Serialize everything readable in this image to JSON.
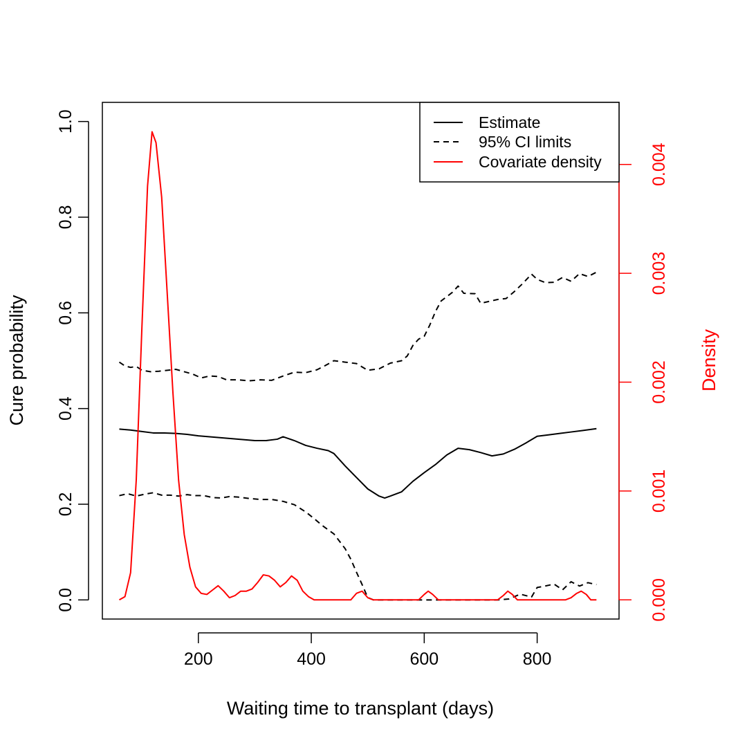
{
  "chart_data": {
    "type": "line",
    "xlabel": "Waiting time to transplant (days)",
    "ylabel": "Cure probability",
    "y2label": "Density",
    "xlim": [
      30,
      945
    ],
    "ylim": [
      -0.04,
      1.04
    ],
    "y2lim": [
      -0.000176,
      0.00457
    ],
    "x_ticks": [
      200,
      400,
      600,
      800
    ],
    "x_tick_labels": [
      "200",
      "400",
      "600",
      "800"
    ],
    "y_ticks": [
      0,
      0.2,
      0.4,
      0.6,
      0.8,
      1.0
    ],
    "y_tick_labels": [
      "0.0",
      "0.2",
      "0.4",
      "0.6",
      "0.8",
      "1.0"
    ],
    "y2_ticks": [
      0,
      0.001,
      0.002,
      0.003,
      0.004
    ],
    "y2_tick_labels": [
      "0.000",
      "0.001",
      "0.002",
      "0.003",
      "0.004"
    ],
    "grid": false,
    "legend_position": "top-right",
    "legend": [
      "Estimate",
      "95% CI limits",
      "Covariate density"
    ],
    "colors": {
      "estimate": "#000000",
      "ci": "#000000",
      "density": "#ff0000",
      "axis_right": "#ff0000"
    },
    "series": [
      {
        "name": "Estimate",
        "axis": "left",
        "style": "solid",
        "x": [
          60,
          80,
          100,
          120,
          140,
          160,
          180,
          200,
          220,
          240,
          260,
          280,
          300,
          320,
          340,
          350,
          370,
          390,
          410,
          430,
          440,
          460,
          480,
          500,
          520,
          530,
          540,
          560,
          580,
          600,
          620,
          640,
          660,
          680,
          700,
          720,
          740,
          760,
          780,
          800,
          820,
          840,
          860,
          880,
          905
        ],
        "y": [
          0.357,
          0.355,
          0.352,
          0.349,
          0.349,
          0.348,
          0.346,
          0.343,
          0.341,
          0.339,
          0.337,
          0.335,
          0.333,
          0.333,
          0.336,
          0.341,
          0.333,
          0.323,
          0.317,
          0.312,
          0.306,
          0.28,
          0.256,
          0.232,
          0.217,
          0.213,
          0.217,
          0.226,
          0.248,
          0.266,
          0.283,
          0.303,
          0.317,
          0.314,
          0.308,
          0.301,
          0.305,
          0.315,
          0.328,
          0.342,
          0.345,
          0.348,
          0.351,
          0.354,
          0.358
        ]
      },
      {
        "name": "95% CI limits",
        "axis": "left",
        "style": "dashed",
        "x": [
          60,
          70,
          80,
          90,
          100,
          115,
          130,
          145,
          160,
          175,
          190,
          205,
          220,
          235,
          250,
          270,
          290,
          310,
          330,
          350,
          370,
          390,
          410,
          425,
          440,
          460,
          480,
          500,
          520,
          540,
          560,
          570,
          580,
          590,
          600,
          610,
          620,
          630,
          650,
          660,
          670,
          690,
          700,
          715,
          730,
          745,
          760,
          775,
          790,
          800,
          815,
          830,
          845,
          860,
          875,
          890,
          905
        ],
        "y": [
          0.497,
          0.489,
          0.486,
          0.488,
          0.48,
          0.477,
          0.478,
          0.48,
          0.482,
          0.477,
          0.472,
          0.464,
          0.468,
          0.467,
          0.46,
          0.46,
          0.458,
          0.46,
          0.459,
          0.468,
          0.476,
          0.475,
          0.481,
          0.49,
          0.5,
          0.497,
          0.494,
          0.48,
          0.483,
          0.495,
          0.5,
          0.51,
          0.532,
          0.545,
          0.551,
          0.575,
          0.603,
          0.625,
          0.643,
          0.656,
          0.641,
          0.64,
          0.62,
          0.624,
          0.628,
          0.63,
          0.645,
          0.662,
          0.681,
          0.67,
          0.663,
          0.664,
          0.674,
          0.666,
          0.682,
          0.676,
          0.685
        ]
      },
      {
        "name": "95% CI limits",
        "axis": "left",
        "style": "dashed",
        "x": [
          60,
          75,
          90,
          105,
          120,
          135,
          150,
          165,
          180,
          195,
          210,
          225,
          240,
          255,
          270,
          290,
          310,
          330,
          350,
          370,
          390,
          405,
          420,
          440,
          460,
          470,
          480,
          490,
          500,
          510,
          530,
          560,
          590,
          620,
          650,
          680,
          710,
          730,
          750,
          770,
          790,
          800,
          810,
          830,
          845,
          860,
          875,
          890,
          905
        ],
        "y": [
          0.218,
          0.222,
          0.217,
          0.221,
          0.224,
          0.219,
          0.219,
          0.217,
          0.22,
          0.218,
          0.218,
          0.214,
          0.213,
          0.216,
          0.215,
          0.212,
          0.21,
          0.21,
          0.206,
          0.199,
          0.184,
          0.17,
          0.155,
          0.138,
          0.107,
          0.085,
          0.058,
          0.032,
          0.005,
          0.0,
          0.0,
          0.0,
          0.0,
          0.0,
          0.0,
          0.0,
          0.0,
          0.0,
          0.002,
          0.012,
          0.006,
          0.026,
          0.028,
          0.033,
          0.021,
          0.038,
          0.029,
          0.036,
          0.032
        ]
      },
      {
        "name": "Covariate density",
        "axis": "right",
        "style": "solid",
        "x": [
          60,
          70,
          80,
          90,
          100,
          110,
          118,
          125,
          135,
          145,
          155,
          165,
          175,
          185,
          195,
          205,
          215,
          225,
          235,
          245,
          255,
          265,
          275,
          285,
          295,
          305,
          315,
          325,
          335,
          345,
          355,
          365,
          375,
          385,
          395,
          405,
          415,
          430,
          445,
          460,
          470,
          480,
          490,
          500,
          510,
          520,
          540,
          560,
          580,
          590,
          600,
          607,
          615,
          625,
          640,
          660,
          690,
          720,
          730,
          740,
          748,
          756,
          765,
          780,
          800,
          830,
          850,
          860,
          870,
          878,
          887,
          895,
          905
        ],
        "y": [
          0.0,
          3e-05,
          0.00025,
          0.0011,
          0.0025,
          0.0038,
          0.0043,
          0.0042,
          0.0037,
          0.0028,
          0.0019,
          0.0011,
          0.0006,
          0.0003,
          0.00012,
          6e-05,
          5e-05,
          9e-05,
          0.00013,
          8e-05,
          2e-05,
          4e-05,
          8e-05,
          8e-05,
          0.0001,
          0.00016,
          0.00023,
          0.00022,
          0.00018,
          0.00012,
          0.00016,
          0.00022,
          0.00018,
          8e-05,
          3e-05,
          0.0,
          0.0,
          0.0,
          0.0,
          0.0,
          0.0,
          6e-05,
          8e-05,
          2e-05,
          0.0,
          0.0,
          0.0,
          0.0,
          0.0,
          0.0,
          5e-05,
          8e-05,
          5e-05,
          0.0,
          0.0,
          0.0,
          0.0,
          0.0,
          0.0,
          4e-05,
          8e-05,
          5e-05,
          0.0,
          0.0,
          0.0,
          0.0,
          0.0,
          2e-05,
          6e-05,
          8e-05,
          5e-05,
          0.0,
          0.0
        ]
      }
    ]
  }
}
